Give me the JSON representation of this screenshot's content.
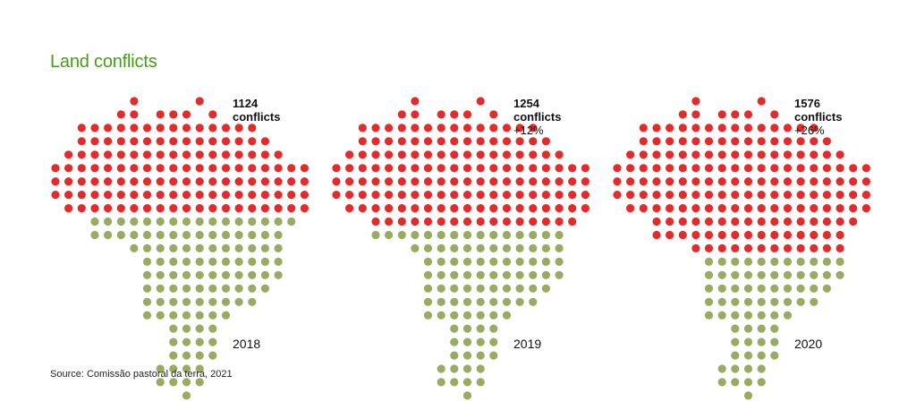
{
  "title": "Land conflicts",
  "source": "Source: Comissão pastoral da terra, 2021",
  "colors": {
    "conflict": "#e42b2b",
    "base": "#9aaa63",
    "title": "#4a9a1e"
  },
  "chart_data": [
    {
      "type": "dot-map",
      "year": "2018",
      "value": 1124,
      "value_label": "1124",
      "unit": "conflicts",
      "change": "",
      "red_rows": 9
    },
    {
      "type": "dot-map",
      "year": "2019",
      "value": 1254,
      "value_label": "1254",
      "unit": "conflicts",
      "change": "+12%",
      "red_rows": 10
    },
    {
      "type": "dot-map",
      "year": "2020",
      "value": 1576,
      "value_label": "1576",
      "unit": "conflicts",
      "change": "+26%",
      "red_rows": 12
    }
  ]
}
